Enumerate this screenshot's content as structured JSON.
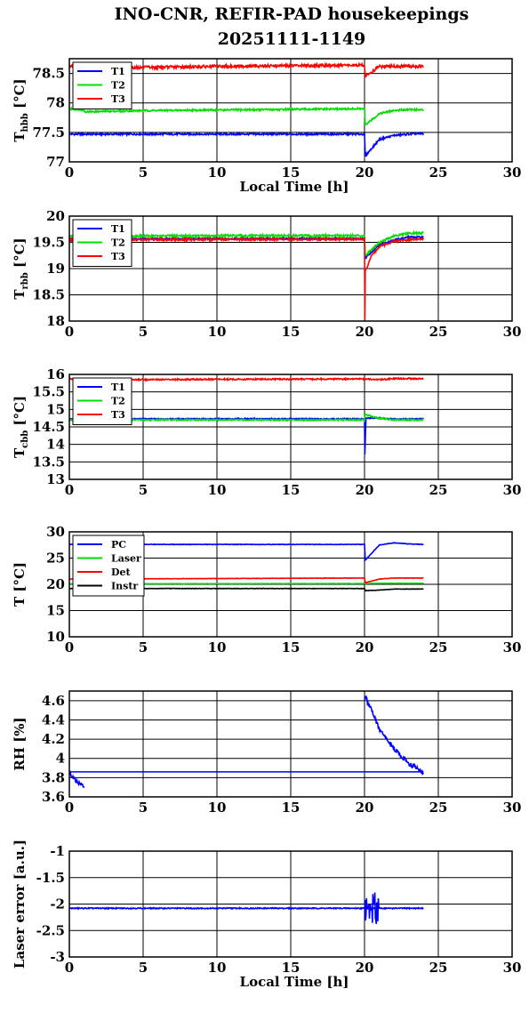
{
  "title_line1": "INO-CNR, REFIR-PAD housekeepings",
  "title_line2": "20251111-1149",
  "colors": {
    "blue": "#0000ff",
    "green": "#00dd00",
    "red": "#ff0000",
    "black": "#000000"
  },
  "chart_data": [
    {
      "type": "line",
      "ylabel_main": "T",
      "ylabel_sub": "hbb",
      "ylabel_unit": " [°C]",
      "xlabel": "Local Time [h]",
      "xlim": [
        0,
        30
      ],
      "ylim": [
        77,
        78.75
      ],
      "xticks": [
        0,
        5,
        10,
        15,
        20,
        25,
        30
      ],
      "yticks": [
        77,
        77.5,
        78,
        78.5
      ],
      "ytick_labels": [
        "77",
        "77.5",
        "78",
        "78.5"
      ],
      "legend_position": "top-left",
      "series": [
        {
          "name": "T1",
          "color": "blue",
          "x": [
            0,
            20,
            20.05,
            21,
            22,
            23,
            24
          ],
          "y": [
            77.47,
            77.47,
            77.1,
            77.38,
            77.45,
            77.47,
            77.48
          ],
          "noise": 0.015
        },
        {
          "name": "T2",
          "color": "green",
          "x": [
            0,
            1,
            1.05,
            5,
            10,
            20,
            20.05,
            21,
            22,
            23,
            24
          ],
          "y": [
            77.9,
            77.88,
            77.85,
            77.87,
            77.88,
            77.9,
            77.62,
            77.82,
            77.87,
            77.89,
            77.88
          ],
          "noise": 0.015
        },
        {
          "name": "T3",
          "color": "red",
          "x": [
            0,
            1,
            5,
            10,
            20,
            20.05,
            21,
            22,
            24
          ],
          "y": [
            78.63,
            78.6,
            78.6,
            78.62,
            78.64,
            78.45,
            78.62,
            78.62,
            78.62
          ],
          "noise": 0.025
        }
      ]
    },
    {
      "type": "line",
      "ylabel_main": "T",
      "ylabel_sub": "rbb",
      "ylabel_unit": " [°C]",
      "xlabel": "",
      "xlim": [
        0,
        30
      ],
      "ylim": [
        18,
        20
      ],
      "xticks": [
        0,
        5,
        10,
        15,
        20,
        25,
        30
      ],
      "yticks": [
        18,
        18.5,
        19,
        19.5,
        20
      ],
      "ytick_labels": [
        "18",
        "18.5",
        "19",
        "19.5",
        "20"
      ],
      "legend_position": "top-left",
      "series": [
        {
          "name": "T1",
          "color": "blue",
          "x": [
            0,
            20,
            20.05,
            21,
            22,
            23,
            24
          ],
          "y": [
            19.57,
            19.57,
            19.2,
            19.45,
            19.55,
            19.6,
            19.6
          ],
          "noise": 0.015
        },
        {
          "name": "T2",
          "color": "green",
          "x": [
            0,
            20,
            20.05,
            21,
            22,
            23,
            24
          ],
          "y": [
            19.62,
            19.63,
            19.25,
            19.5,
            19.62,
            19.67,
            19.68
          ],
          "noise": 0.02
        },
        {
          "name": "T3",
          "color": "red",
          "x": [
            0,
            20,
            20.02,
            20.05,
            20.5,
            21,
            22,
            23,
            24
          ],
          "y": [
            19.55,
            19.56,
            18.0,
            18.95,
            19.25,
            19.42,
            19.52,
            19.55,
            19.56
          ],
          "noise": 0.02
        }
      ]
    },
    {
      "type": "line",
      "ylabel_main": "T",
      "ylabel_sub": "cbb",
      "ylabel_unit": " [°C]",
      "xlabel": "",
      "xlim": [
        0,
        30
      ],
      "ylim": [
        13,
        16
      ],
      "xticks": [
        0,
        5,
        10,
        15,
        20,
        25,
        30
      ],
      "yticks": [
        13,
        13.5,
        14,
        14.5,
        15,
        15.5,
        16
      ],
      "ytick_labels": [
        "13",
        "13.5",
        "14",
        "14.5",
        "15",
        "15.5",
        "16"
      ],
      "legend_position": "top-left",
      "series": [
        {
          "name": "T1",
          "color": "blue",
          "x": [
            0,
            20,
            20.02,
            20.1,
            21,
            22,
            24
          ],
          "y": [
            14.73,
            14.73,
            13.7,
            14.75,
            14.75,
            14.73,
            14.73
          ],
          "noise": 0.015
        },
        {
          "name": "T2",
          "color": "green",
          "x": [
            0,
            20,
            20.05,
            21,
            22,
            24
          ],
          "y": [
            14.7,
            14.7,
            14.85,
            14.75,
            14.7,
            14.7
          ],
          "noise": 0.02
        },
        {
          "name": "T3",
          "color": "red",
          "x": [
            0,
            1,
            5,
            10,
            20,
            21,
            22,
            24
          ],
          "y": [
            15.88,
            15.85,
            15.85,
            15.86,
            15.87,
            15.85,
            15.88,
            15.88
          ],
          "noise": 0.02
        }
      ]
    },
    {
      "type": "line",
      "ylabel_main": "T",
      "ylabel_sub": "",
      "ylabel_unit": " [°C]",
      "xlabel": "",
      "xlim": [
        0,
        30
      ],
      "ylim": [
        10,
        30
      ],
      "xticks": [
        0,
        5,
        10,
        15,
        20,
        25,
        30
      ],
      "yticks": [
        10,
        15,
        20,
        25,
        30
      ],
      "ytick_labels": [
        "10",
        "15",
        "20",
        "25",
        "30"
      ],
      "legend_position": "top-left",
      "series": [
        {
          "name": "PC",
          "color": "blue",
          "x": [
            0,
            20,
            20.05,
            21,
            22,
            23,
            24
          ],
          "y": [
            27.6,
            27.6,
            24.6,
            27.5,
            27.9,
            27.7,
            27.6
          ],
          "noise": 0.05
        },
        {
          "name": "Laser",
          "color": "green",
          "x": [
            0,
            20,
            21,
            22,
            24
          ],
          "y": [
            20.1,
            20.15,
            20.2,
            20.2,
            20.2
          ],
          "noise": 0.03
        },
        {
          "name": "Det",
          "color": "red",
          "x": [
            0,
            20,
            20.05,
            21,
            22,
            24
          ],
          "y": [
            21.0,
            21.2,
            20.3,
            21.0,
            21.2,
            21.2
          ],
          "noise": 0.04
        },
        {
          "name": "Instr",
          "color": "black",
          "x": [
            0,
            20,
            20.05,
            21,
            22,
            24
          ],
          "y": [
            19.2,
            19.2,
            18.8,
            18.9,
            19.1,
            19.1
          ],
          "noise": 0.04
        }
      ]
    },
    {
      "type": "line",
      "ylabel_main": "RH [%]",
      "ylabel_sub": "",
      "ylabel_unit": "",
      "xlabel": "",
      "xlim": [
        0,
        30
      ],
      "ylim": [
        3.6,
        4.7
      ],
      "xticks": [
        0,
        5,
        10,
        15,
        20,
        25,
        30
      ],
      "yticks": [
        3.6,
        3.8,
        4,
        4.2,
        4.4,
        4.6
      ],
      "ytick_labels": [
        "3.6",
        "3.8",
        "4",
        "4.2",
        "4.4",
        "4.6"
      ],
      "legend_position": "none",
      "series": [
        {
          "name": "",
          "color": "blue",
          "x": [
            0,
            0.5,
            1
          ],
          "y": [
            3.85,
            3.76,
            3.71
          ],
          "noise": 0.02
        },
        {
          "name": "",
          "color": "blue",
          "x": [
            0,
            20,
            24
          ],
          "y": [
            3.86,
            3.86,
            3.86
          ],
          "noise": 0.0
        },
        {
          "name": "",
          "color": "blue",
          "x": [
            20,
            20.5,
            21,
            22,
            23,
            24
          ],
          "y": [
            4.65,
            4.5,
            4.3,
            4.1,
            3.95,
            3.85
          ],
          "noise": 0.025
        }
      ]
    },
    {
      "type": "line",
      "ylabel_main": "Laser error [a.u.]",
      "ylabel_sub": "",
      "ylabel_unit": "",
      "xlabel": "Local Time [h]",
      "xlim": [
        0,
        30
      ],
      "ylim": [
        -3,
        -1
      ],
      "xticks": [
        0,
        5,
        10,
        15,
        20,
        25,
        30
      ],
      "yticks": [
        -3,
        -2.5,
        -2,
        -1.5,
        -1
      ],
      "ytick_labels": [
        "-3",
        "-2.5",
        "-2",
        "-1.5",
        "-1"
      ],
      "legend_position": "none",
      "series": [
        {
          "name": "",
          "color": "blue",
          "x": [
            0,
            20,
            24
          ],
          "y": [
            -2.08,
            -2.08,
            -2.08
          ],
          "noise": 0.01
        },
        {
          "name": "",
          "color": "blue",
          "x": [
            20,
            20.5,
            21
          ],
          "y": [
            -2.08,
            -2.08,
            -2.08
          ],
          "noise": 0.3
        }
      ]
    }
  ]
}
